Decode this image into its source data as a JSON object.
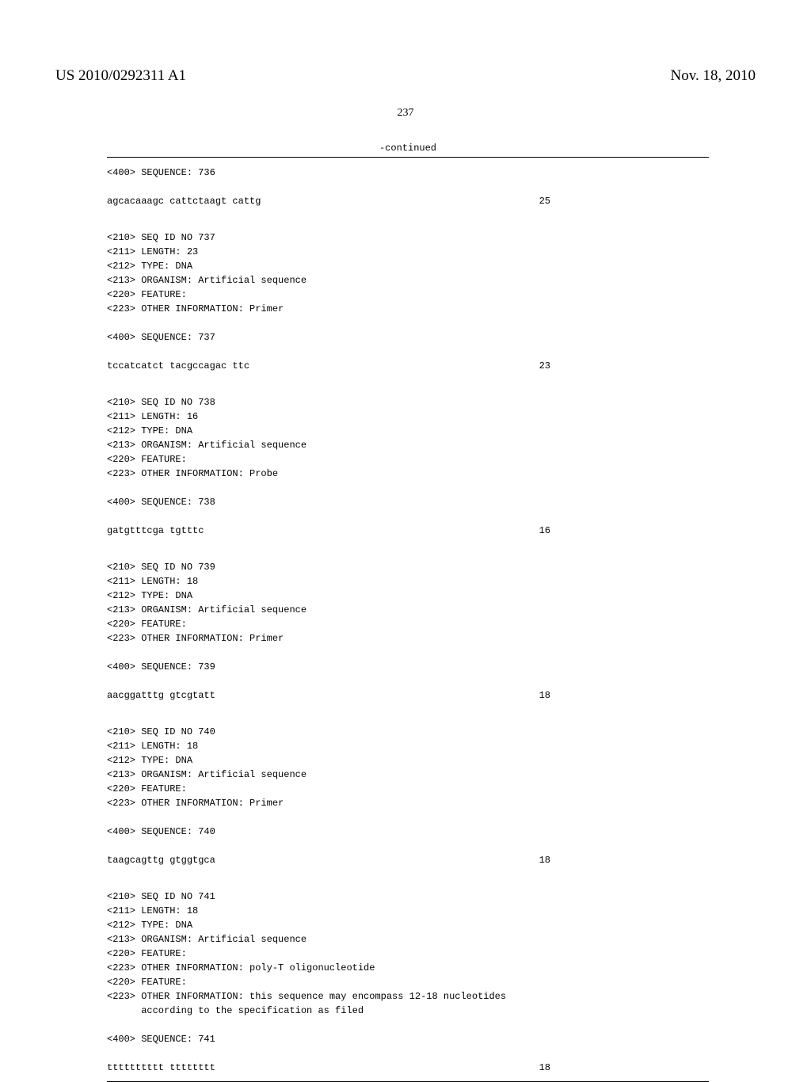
{
  "header": {
    "publication_number": "US 2010/0292311 A1",
    "publication_date": "Nov. 18, 2010",
    "page_number": "237"
  },
  "continued_label": "-continued",
  "sequences": [
    {
      "header_lines": [
        "<400> SEQUENCE: 736"
      ],
      "sequence_text": "agcacaaagc cattctaagt cattg",
      "sequence_length": "25"
    },
    {
      "header_lines": [
        "<210> SEQ ID NO 737",
        "<211> LENGTH: 23",
        "<212> TYPE: DNA",
        "<213> ORGANISM: Artificial sequence",
        "<220> FEATURE:",
        "<223> OTHER INFORMATION: Primer",
        "",
        "<400> SEQUENCE: 737"
      ],
      "sequence_text": "tccatcatct tacgccagac ttc",
      "sequence_length": "23"
    },
    {
      "header_lines": [
        "<210> SEQ ID NO 738",
        "<211> LENGTH: 16",
        "<212> TYPE: DNA",
        "<213> ORGANISM: Artificial sequence",
        "<220> FEATURE:",
        "<223> OTHER INFORMATION: Probe",
        "",
        "<400> SEQUENCE: 738"
      ],
      "sequence_text": "gatgtttcga tgtttc",
      "sequence_length": "16"
    },
    {
      "header_lines": [
        "<210> SEQ ID NO 739",
        "<211> LENGTH: 18",
        "<212> TYPE: DNA",
        "<213> ORGANISM: Artificial sequence",
        "<220> FEATURE:",
        "<223> OTHER INFORMATION: Primer",
        "",
        "<400> SEQUENCE: 739"
      ],
      "sequence_text": "aacggatttg gtcgtatt",
      "sequence_length": "18"
    },
    {
      "header_lines": [
        "<210> SEQ ID NO 740",
        "<211> LENGTH: 18",
        "<212> TYPE: DNA",
        "<213> ORGANISM: Artificial sequence",
        "<220> FEATURE:",
        "<223> OTHER INFORMATION: Primer",
        "",
        "<400> SEQUENCE: 740"
      ],
      "sequence_text": "taagcagttg gtggtgca",
      "sequence_length": "18"
    },
    {
      "header_lines": [
        "<210> SEQ ID NO 741",
        "<211> LENGTH: 18",
        "<212> TYPE: DNA",
        "<213> ORGANISM: Artificial sequence",
        "<220> FEATURE:",
        "<223> OTHER INFORMATION: poly-T oligonucleotide",
        "<220> FEATURE:",
        "<223> OTHER INFORMATION: this sequence may encompass 12-18 nucleotides",
        "      according to the specification as filed",
        "",
        "<400> SEQUENCE: 741"
      ],
      "sequence_text": "tttttttttt tttttttt",
      "sequence_length": "18"
    }
  ]
}
